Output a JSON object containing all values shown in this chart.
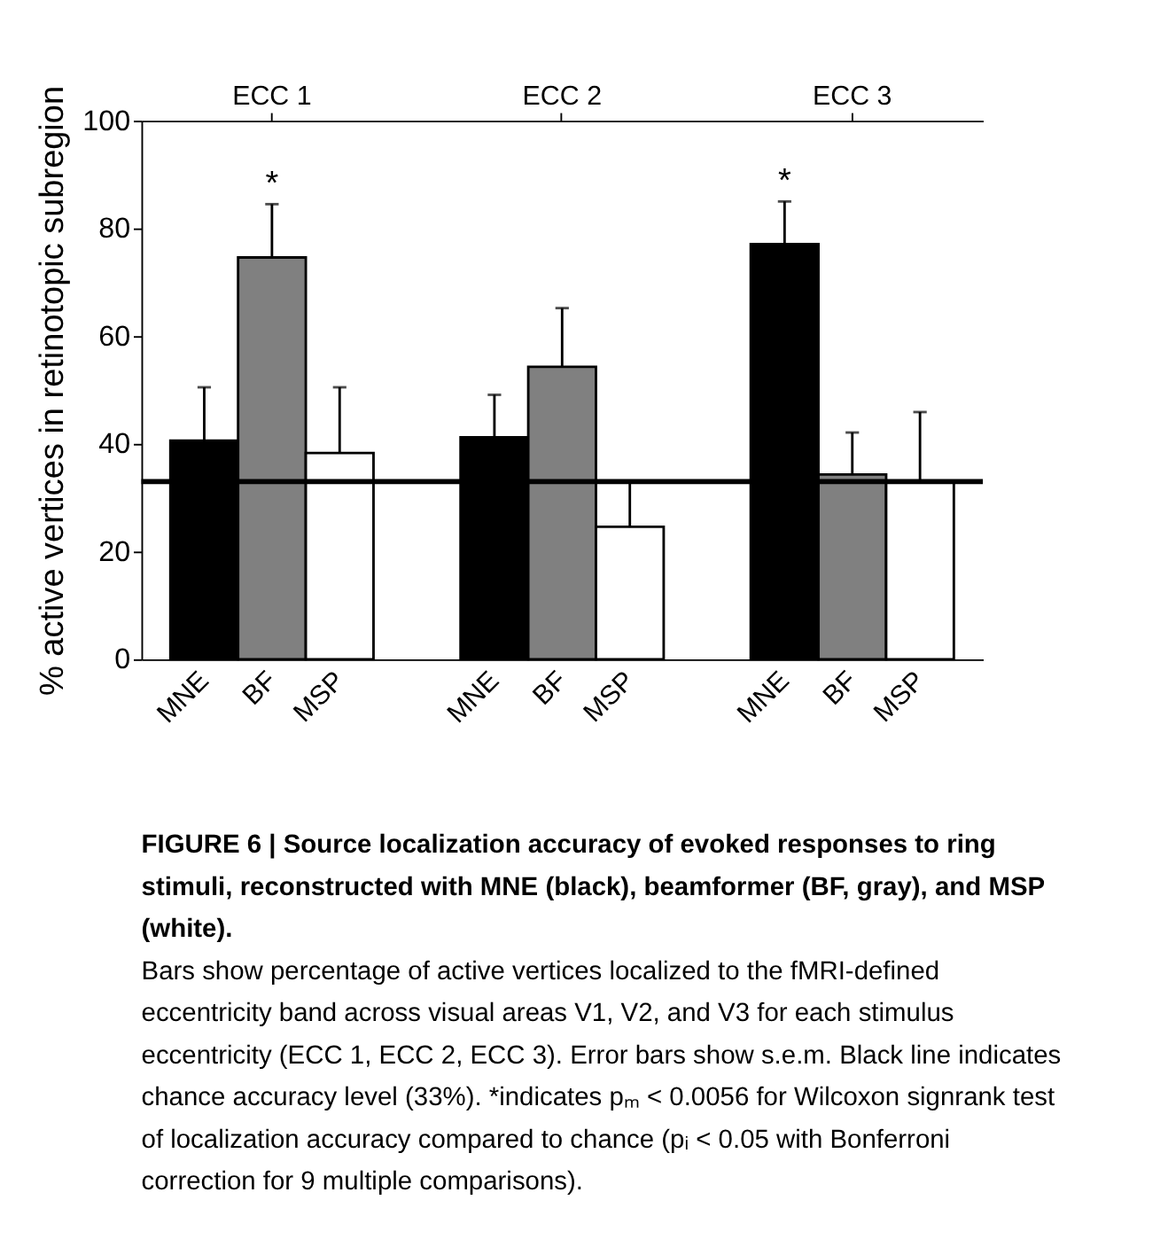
{
  "chart_data": {
    "type": "bar",
    "categories": [
      "ECC 1",
      "ECC 2",
      "ECC 3"
    ],
    "series": [
      {
        "name": "MNE",
        "color": "#000000",
        "values": [
          40.6,
          41.2,
          77.1
        ],
        "errors": [
          [
            40.6,
            50.5
          ],
          [
            41.2,
            49.1
          ],
          [
            77.1,
            85.0
          ]
        ],
        "value_labels": [
          null,
          null,
          "*"
        ]
      },
      {
        "name": "BF",
        "color": "#808080",
        "values": [
          74.6,
          54.3,
          34.3
        ],
        "errors": [
          [
            74.6,
            84.5
          ],
          [
            54.3,
            65.2
          ],
          [
            34.3,
            42.1
          ]
        ],
        "value_labels": [
          "*",
          null,
          null
        ]
      },
      {
        "name": "MSP",
        "color": "#ffffff",
        "values": [
          38.3,
          24.6,
          33.0
        ],
        "errors": [
          [
            38.3,
            50.5
          ],
          [
            24.6,
            33.0
          ],
          [
            33.0,
            45.9
          ]
        ],
        "value_labels": [
          null,
          null,
          null
        ]
      }
    ],
    "ylabel": "% active vertices in retinotopic subregion",
    "ylim": [
      0,
      100
    ],
    "yticks": [
      0,
      20,
      40,
      60,
      80,
      100
    ],
    "ref_lines": [
      {
        "axis": "y",
        "value": 33,
        "color": "#000000"
      }
    ],
    "grid": false,
    "legend": false,
    "annotations": [
      "FIGURE 6 | Source localization accuracy of evoked responses to ring stimuli, reconstructed with MNE (black), beamformer (BF, gray), and MSP (white).",
      "Bars show percentage of active vertices localized to the fMRI-defined eccentricity band across visual areas V1, V2, and V3 for each stimulus eccentricity (ECC 1, ECC 2, ECC 3). Error bars show s.e.m. Black line indicates chance accuracy level (33%). *indicates pₘ < 0.0056 for Wilcoxon signrank test of localization accuracy compared to chance (pᵢ < 0.05 with Bonferroni correction for 9 multiple comparisons)."
    ]
  }
}
